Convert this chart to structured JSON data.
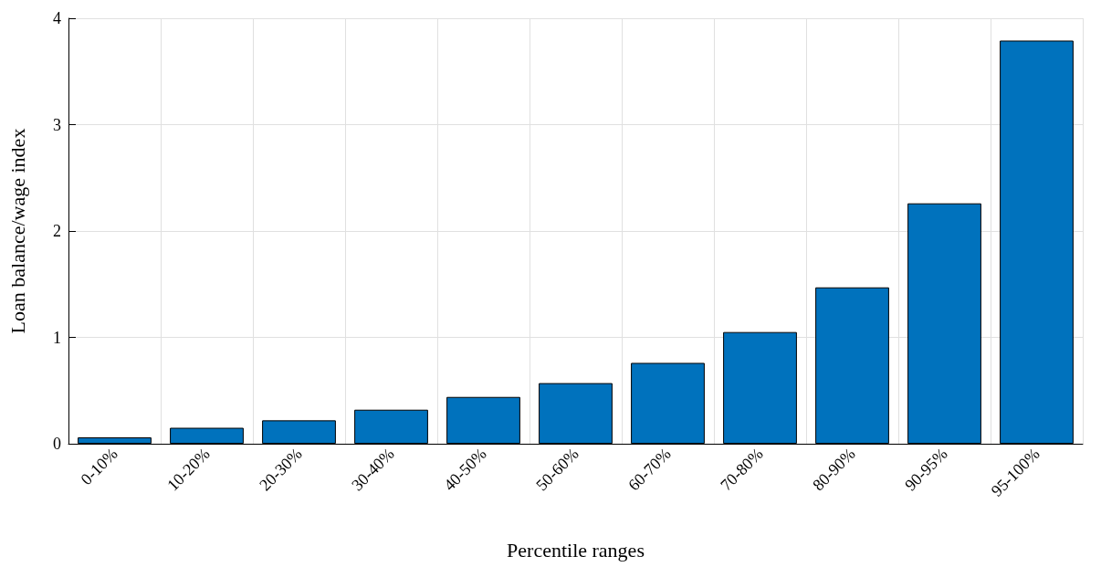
{
  "chart_data": {
    "type": "bar",
    "xlabel": "Percentile ranges",
    "ylabel": "Loan balance/wage index",
    "categories": [
      "0-10%",
      "10-20%",
      "20-30%",
      "30-40%",
      "40-50%",
      "50-60%",
      "60-70%",
      "70-80%",
      "80-90%",
      "90-95%",
      "95-100%"
    ],
    "values": [
      0.06,
      0.15,
      0.22,
      0.32,
      0.44,
      0.57,
      0.76,
      1.05,
      1.47,
      2.26,
      3.79
    ],
    "color": "#0072bd",
    "ylim": [
      0,
      4
    ],
    "yticks": [
      0,
      1,
      2,
      3,
      4
    ],
    "grid": true
  }
}
